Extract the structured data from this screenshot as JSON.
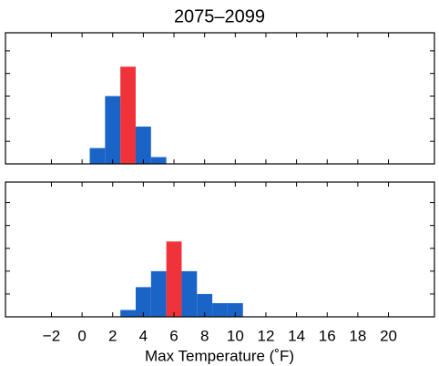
{
  "chart_data": [
    {
      "type": "histogram",
      "title": "2075–2099",
      "bins": [
        0.5,
        1.5,
        2.5,
        3.5,
        4.5,
        5.5
      ],
      "values": [
        7,
        30,
        43,
        16.5,
        3
      ],
      "color": "#1a64c8",
      "highlight_color": "#f0333a",
      "highlight_bin": 2,
      "xlim": [
        -5,
        23
      ],
      "ylim": [
        0,
        58
      ],
      "xticks": [
        -2,
        0,
        2,
        4,
        6,
        8,
        10,
        12,
        14,
        16,
        18,
        20
      ],
      "yticks": [
        0,
        10,
        20,
        30,
        40,
        50
      ],
      "show_xticklabels": false
    },
    {
      "type": "histogram",
      "xlabel": "Max Temperature (˚F)",
      "bins": [
        2.5,
        3.5,
        4.5,
        5.5,
        6.5,
        7.5,
        8.5,
        9.5,
        10.5
      ],
      "values": [
        3,
        13,
        20,
        33,
        20,
        10,
        6,
        6
      ],
      "color": "#1a64c8",
      "highlight_color": "#f0333a",
      "highlight_bin": 3,
      "xlim": [
        -5,
        23
      ],
      "ylim": [
        0,
        59
      ],
      "xticks": [
        {
          "value": -2,
          "label": "−2"
        },
        0,
        2,
        4,
        6,
        8,
        10,
        12,
        14,
        16,
        18,
        20
      ],
      "yticks": [
        0,
        10,
        20,
        30,
        40,
        50
      ],
      "show_xticklabels": true
    }
  ]
}
